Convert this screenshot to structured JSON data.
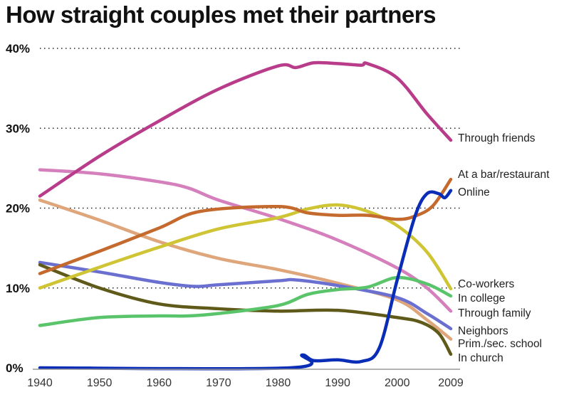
{
  "chart_data": {
    "type": "line",
    "title": "How straight couples met their partners",
    "xlabel": "",
    "ylabel": "",
    "xlim": [
      1940,
      2009
    ],
    "ylim": [
      0,
      40
    ],
    "x_ticks": [
      "1940",
      "1950",
      "1960",
      "1970",
      "1980",
      "1990",
      "2000",
      "2009"
    ],
    "y_ticks": [
      "0%",
      "10%",
      "20%",
      "30%",
      "40%"
    ],
    "grid": "dotted horizontal",
    "legend": "direct labels at right",
    "series": [
      {
        "name": "Through friends",
        "color": "#b83c8a",
        "x": [
          1940,
          1950,
          1960,
          1970,
          1980,
          1983,
          1986,
          1990,
          1994,
          1995,
          2000,
          2005,
          2009
        ],
        "values": [
          21.5,
          26.5,
          30.9,
          34.9,
          37.8,
          37.6,
          38.2,
          38.1,
          37.9,
          38.1,
          36.3,
          31.8,
          28.5
        ]
      },
      {
        "name": "At a bar/restaurant",
        "color": "#c56a2e",
        "x": [
          1940,
          1950,
          1960,
          1967,
          1980,
          1985,
          1990,
          1995,
          2000,
          2003,
          2006,
          2009
        ],
        "values": [
          11.8,
          14.6,
          17.5,
          19.6,
          20.2,
          19.4,
          19.1,
          19.1,
          18.6,
          19.0,
          20.3,
          23.6
        ]
      },
      {
        "name": "Online",
        "color": "#0a2db8",
        "x": [
          1940,
          1982,
          1984,
          1986,
          1990,
          1994,
          1997,
          2000,
          2003,
          2005,
          2007,
          2008,
          2009
        ],
        "values": [
          0,
          0,
          1.6,
          0.9,
          1.0,
          0.8,
          2.5,
          11,
          19,
          21.8,
          21.8,
          21.3,
          22.2
        ]
      },
      {
        "name": "Co-workers",
        "color": "#cfc534",
        "x": [
          1940,
          1950,
          1960,
          1970,
          1980,
          1985,
          1990,
          1995,
          2000,
          2005,
          2009
        ],
        "values": [
          10,
          12.6,
          15.1,
          17.4,
          18.8,
          19.9,
          20.4,
          19.6,
          17.8,
          14.5,
          9.9
        ]
      },
      {
        "name": "In college",
        "color": "#5ac46a",
        "x": [
          1940,
          1950,
          1960,
          1965,
          1970,
          1980,
          1985,
          1990,
          1995,
          2000,
          2005,
          2009
        ],
        "values": [
          5.3,
          6.3,
          6.5,
          6.5,
          6.8,
          7.8,
          9.2,
          9.8,
          10.1,
          11.3,
          10.5,
          9.0
        ]
      },
      {
        "name": "Through family",
        "color": "#d57fbc",
        "x": [
          1940,
          1950,
          1960,
          1965,
          1970,
          1980,
          1990,
          2000,
          2005,
          2009
        ],
        "values": [
          24.8,
          24.3,
          23.3,
          22.5,
          21,
          18.7,
          16,
          12.5,
          10,
          7.1
        ]
      },
      {
        "name": "Neighbors",
        "color": "#6a6fd0",
        "x": [
          1940,
          1950,
          1960,
          1966,
          1970,
          1980,
          1983,
          1990,
          2000,
          2005,
          2009
        ],
        "values": [
          13.2,
          12,
          10.7,
          10.2,
          10.4,
          10.9,
          11,
          10.3,
          8.8,
          6.8,
          4.9
        ]
      },
      {
        "name": "Prim./sec. school",
        "color": "#dea67a",
        "x": [
          1940,
          1950,
          1960,
          1970,
          1980,
          1990,
          2000,
          2005,
          2009
        ],
        "values": [
          21,
          18.5,
          15.8,
          13.7,
          12.3,
          10.6,
          8.5,
          6,
          3.6
        ]
      },
      {
        "name": "In church",
        "color": "#5f5a1a",
        "x": [
          1940,
          1950,
          1960,
          1970,
          1980,
          1990,
          2000,
          2004,
          2007,
          2009
        ],
        "values": [
          12.9,
          10,
          8,
          7.4,
          7.1,
          7.2,
          6.3,
          5.7,
          4.3,
          1.7
        ]
      }
    ]
  }
}
